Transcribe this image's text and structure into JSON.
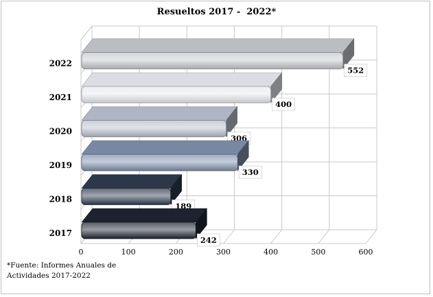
{
  "chart_data": {
    "type": "bar",
    "orientation": "horizontal",
    "title": "Resueltos 2017 -  2022*",
    "categories": [
      "2017",
      "2018",
      "2019",
      "2020",
      "2021",
      "2022"
    ],
    "values": [
      242,
      189,
      330,
      306,
      400,
      552
    ],
    "xlim": [
      0,
      600
    ],
    "xticks": [
      "0",
      "100",
      "200",
      "300",
      "400",
      "500",
      "600"
    ],
    "bar_colors": [
      "#1f2430",
      "#2e3a4e",
      "#7f8fab",
      "#b8bfcc",
      "#e6e9ee",
      "#c4c7cc"
    ],
    "grid": true,
    "style": "3d"
  },
  "footnote": {
    "line1": "*Fuente: Informes Anuales de",
    "line2": "Actividades 2017-2022"
  }
}
